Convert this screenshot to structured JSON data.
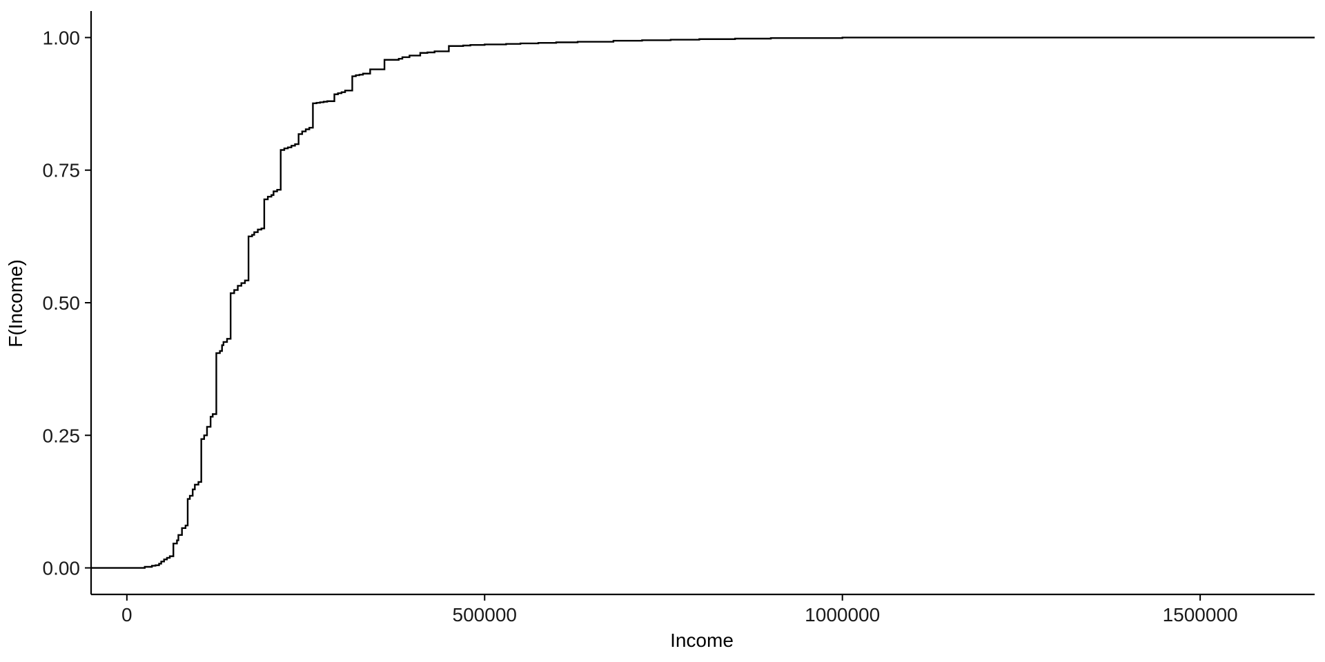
{
  "chart_data": {
    "type": "line",
    "subtype": "ecdf-step",
    "title": "",
    "xlabel": "Income",
    "ylabel": "F(Income)",
    "xlim": [
      -50000,
      1660000
    ],
    "ylim": [
      -0.05,
      1.05
    ],
    "x_ticks": [
      0,
      500000,
      1000000,
      1500000
    ],
    "x_tick_labels": [
      "0",
      "500000",
      "1000000",
      "1500000"
    ],
    "y_ticks": [
      0,
      0.25,
      0.5,
      0.75,
      1.0
    ],
    "y_tick_labels": [
      "0.00",
      "0.25",
      "0.50",
      "0.75",
      "1.00"
    ],
    "grid": false,
    "legend": "none",
    "line_color": "#000000",
    "series": [
      {
        "x": [
          -50000,
          25000,
          35000,
          40000,
          45000,
          48000,
          52000,
          56000,
          60000,
          65000,
          70000,
          72000,
          77000,
          82000,
          85000,
          88000,
          92000,
          95000,
          100000,
          104000,
          108000,
          112000,
          117000,
          120000,
          125000,
          130000,
          133000,
          135000,
          140000,
          145000,
          150000,
          155000,
          160000,
          165000,
          170000,
          175000,
          178000,
          183000,
          188000,
          192000,
          197000,
          202000,
          205000,
          210000,
          215000,
          220000,
          225000,
          230000,
          235000,
          240000,
          245000,
          250000,
          255000,
          260000,
          265000,
          270000,
          275000,
          280000,
          290000,
          295000,
          300000,
          305000,
          315000,
          320000,
          325000,
          330000,
          340000,
          360000,
          380000,
          385000,
          395000,
          410000,
          420000,
          430000,
          450000,
          470000,
          480000,
          500000,
          530000,
          550000,
          575000,
          600000,
          630000,
          680000,
          720000,
          760000,
          800000,
          850000,
          900000,
          1000000,
          1660000
        ],
        "y": [
          0,
          0.002,
          0.004,
          0.005,
          0.008,
          0.012,
          0.016,
          0.019,
          0.022,
          0.046,
          0.052,
          0.062,
          0.075,
          0.08,
          0.13,
          0.136,
          0.148,
          0.157,
          0.162,
          0.243,
          0.25,
          0.266,
          0.285,
          0.29,
          0.405,
          0.409,
          0.42,
          0.426,
          0.432,
          0.518,
          0.524,
          0.532,
          0.537,
          0.542,
          0.625,
          0.628,
          0.633,
          0.638,
          0.64,
          0.695,
          0.7,
          0.703,
          0.71,
          0.713,
          0.788,
          0.791,
          0.793,
          0.796,
          0.799,
          0.818,
          0.823,
          0.827,
          0.83,
          0.876,
          0.877,
          0.878,
          0.879,
          0.88,
          0.893,
          0.895,
          0.897,
          0.9,
          0.927,
          0.929,
          0.93,
          0.932,
          0.94,
          0.958,
          0.96,
          0.963,
          0.966,
          0.971,
          0.972,
          0.974,
          0.984,
          0.985,
          0.986,
          0.987,
          0.988,
          0.989,
          0.99,
          0.991,
          0.992,
          0.994,
          0.995,
          0.996,
          0.997,
          0.998,
          0.999,
          1.0,
          1.0
        ]
      }
    ]
  }
}
